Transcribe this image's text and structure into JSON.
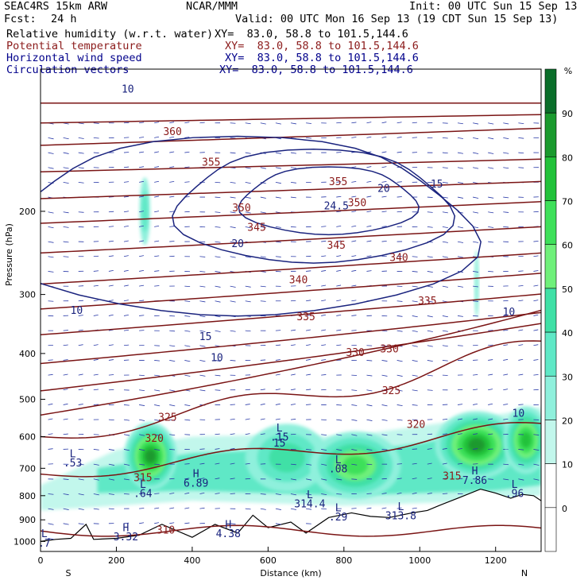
{
  "header": {
    "model": "SEAC4RS 15km ARW",
    "org": "NCAR/MMM",
    "init": "Init: 00 UTC Sun 15 Sep 13",
    "fcst_label": "Fcst:",
    "fcst_value": "24 h",
    "valid": "Valid: 00 UTC Mon 16 Sep 13 (19 CDT Sun 15 Sep 13)",
    "fields": [
      {
        "name": "Relative humidity (w.r.t. water)",
        "xy": "XY=  83.0, 58.8 to 101.5,144.6",
        "color": "#000000"
      },
      {
        "name": "Potential temperature",
        "xy": "XY=  83.0, 58.8 to 101.5,144.6",
        "color": "#8b1a1a"
      },
      {
        "name": "Horizontal wind speed",
        "xy": "XY=  83.0, 58.8 to 101.5,144.6",
        "color": "#00008b"
      },
      {
        "name": "Circulation vectors",
        "xy": "XY=  83.0, 58.8 to 101.5,144.6",
        "color": "#00008b"
      }
    ]
  },
  "colorbar": {
    "unit": "%",
    "levels": [
      "90",
      "80",
      "70",
      "60",
      "50",
      "40",
      "30",
      "20",
      "10",
      "0"
    ],
    "colors": [
      "#0a6e2a",
      "#1a9a2e",
      "#22c23a",
      "#3ee05a",
      "#6ff07a",
      "#3fe0a6",
      "#5fe8c6",
      "#8ff0dc",
      "#c2f7ec"
    ]
  },
  "chart_data": {
    "type": "contour",
    "xlabel": "Distance (km)",
    "ylabel": "Pressure (hPa)",
    "xlim": [
      0,
      1320
    ],
    "ylim": [
      1050,
      100
    ],
    "y_scale": "log",
    "x_ticks": [
      "0",
      "200",
      "400",
      "600",
      "800",
      "1000",
      "1200"
    ],
    "y_ticks": [
      "200",
      "300",
      "400",
      "500",
      "600",
      "700",
      "800",
      "900",
      "1000"
    ],
    "endpoint_labels": {
      "left": "S",
      "right": "N"
    },
    "theta_levels": [
      {
        "label": "360",
        "x": 348,
        "p": 138
      },
      {
        "label": "355",
        "x": 450,
        "p": 160
      },
      {
        "label": "355",
        "x": 785,
        "p": 176
      },
      {
        "label": "350",
        "x": 530,
        "p": 200
      },
      {
        "label": "350",
        "x": 835,
        "p": 195
      },
      {
        "label": "345",
        "x": 570,
        "p": 220
      },
      {
        "label": "345",
        "x": 780,
        "p": 240
      },
      {
        "label": "340",
        "x": 680,
        "p": 284
      },
      {
        "label": "340",
        "x": 945,
        "p": 255
      },
      {
        "label": "335",
        "x": 700,
        "p": 340
      },
      {
        "label": "335",
        "x": 1020,
        "p": 315
      },
      {
        "label": "330",
        "x": 830,
        "p": 405
      },
      {
        "label": "330",
        "x": 920,
        "p": 398
      },
      {
        "label": "325",
        "x": 335,
        "p": 555
      },
      {
        "label": "325",
        "x": 925,
        "p": 488
      },
      {
        "label": "320",
        "x": 300,
        "p": 615
      },
      {
        "label": "320",
        "x": 990,
        "p": 575
      },
      {
        "label": "315",
        "x": 270,
        "p": 745
      },
      {
        "label": "315",
        "x": 1085,
        "p": 740
      },
      {
        "label": "310",
        "x": 330,
        "p": 962
      }
    ],
    "wind_speed_levels": [
      {
        "label": "10",
        "x": 230,
        "p": 112
      },
      {
        "label": "10",
        "x": 95,
        "p": 330
      },
      {
        "label": "10",
        "x": 465,
        "p": 415
      },
      {
        "label": "10",
        "x": 1235,
        "p": 332
      },
      {
        "label": "10",
        "x": 1260,
        "p": 545
      },
      {
        "label": "15",
        "x": 435,
        "p": 375
      },
      {
        "label": "15",
        "x": 1045,
        "p": 178
      },
      {
        "label": "20",
        "x": 520,
        "p": 238
      },
      {
        "label": "20",
        "x": 905,
        "p": 182
      },
      {
        "label": "24.5",
        "x": 780,
        "p": 198
      },
      {
        "label": "15",
        "x": 630,
        "p": 630
      }
    ],
    "extrema": [
      {
        "type": "L",
        "value": ".53",
        "x": 85,
        "p": 680
      },
      {
        "type": "L",
        "value": ".64",
        "x": 270,
        "p": 790
      },
      {
        "type": "H",
        "value": "6.89",
        "x": 410,
        "p": 750
      },
      {
        "type": "H",
        "value": "3.32",
        "x": 225,
        "p": 975
      },
      {
        "type": "H",
        "value": "4.38",
        "x": 495,
        "p": 960
      },
      {
        "type": "L",
        "value": ".15",
        "x": 630,
        "p": 600
      },
      {
        "type": "L",
        "value": ".08",
        "x": 785,
        "p": 700
      },
      {
        "type": "L",
        "value": "314.4",
        "x": 710,
        "p": 830
      },
      {
        "type": "L",
        "value": ".29",
        "x": 785,
        "p": 885
      },
      {
        "type": "L",
        "value": "313.8",
        "x": 950,
        "p": 880
      },
      {
        "type": "H",
        "value": "7.86",
        "x": 1145,
        "p": 740
      },
      {
        "type": "L",
        "value": ".96",
        "x": 1250,
        "p": 790
      },
      {
        "type": "L",
        "value": ".7",
        "x": 10,
        "p": 1005
      }
    ],
    "rh_blobs": [
      {
        "x": 290,
        "p": 660,
        "rx": 70,
        "rh": 92
      },
      {
        "x": 650,
        "p": 665,
        "rx": 110,
        "rh": 55
      },
      {
        "x": 830,
        "p": 690,
        "rx": 120,
        "rh": 70
      },
      {
        "x": 1150,
        "p": 625,
        "rx": 110,
        "rh": 90
      },
      {
        "x": 1280,
        "p": 610,
        "rx": 60,
        "rh": 80
      },
      {
        "x": 275,
        "p": 200,
        "rx": 14,
        "rh": 40
      },
      {
        "x": 1150,
        "p": 285,
        "rx": 6,
        "rh": 30
      }
    ],
    "terrain_profile": [
      [
        0,
        1000
      ],
      [
        40,
        990
      ],
      [
        80,
        985
      ],
      [
        120,
        920
      ],
      [
        140,
        990
      ],
      [
        200,
        985
      ],
      [
        260,
        970
      ],
      [
        320,
        920
      ],
      [
        400,
        980
      ],
      [
        460,
        920
      ],
      [
        520,
        960
      ],
      [
        560,
        880
      ],
      [
        600,
        935
      ],
      [
        660,
        910
      ],
      [
        700,
        960
      ],
      [
        760,
        890
      ],
      [
        820,
        870
      ],
      [
        870,
        885
      ],
      [
        920,
        890
      ],
      [
        980,
        870
      ],
      [
        1020,
        860
      ],
      [
        1050,
        840
      ],
      [
        1100,
        810
      ],
      [
        1160,
        775
      ],
      [
        1200,
        790
      ],
      [
        1240,
        810
      ],
      [
        1270,
        795
      ],
      [
        1300,
        800
      ],
      [
        1320,
        820
      ]
    ]
  }
}
